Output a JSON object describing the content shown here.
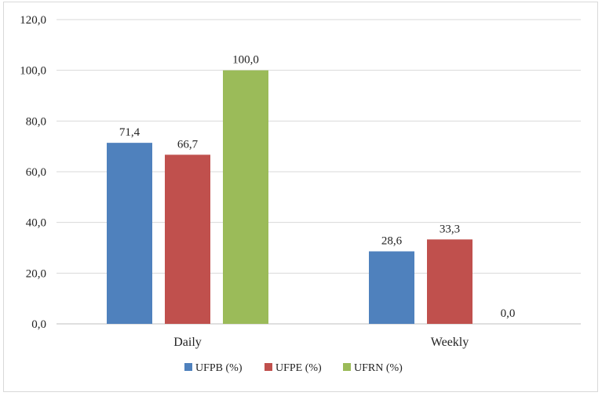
{
  "chart_data": {
    "type": "bar",
    "categories": [
      "Daily",
      "Weekly"
    ],
    "series": [
      {
        "name": "UFPB (%)",
        "color": "#4f81bd",
        "values": [
          71.4,
          28.6
        ],
        "labels": [
          "71,4",
          "28,6"
        ]
      },
      {
        "name": "UFPE (%)",
        "color": "#c0504d",
        "values": [
          66.7,
          33.3
        ],
        "labels": [
          "66,7",
          "33,3"
        ]
      },
      {
        "name": "UFRN (%)",
        "color": "#9bbb59",
        "values": [
          100.0,
          0.0
        ],
        "labels": [
          "100,0",
          "0,0"
        ]
      }
    ],
    "ylim": [
      0,
      120
    ],
    "yticks": [
      0,
      20,
      40,
      60,
      80,
      100,
      120
    ],
    "ytick_labels": [
      "0,0",
      "20,0",
      "40,0",
      "60,0",
      "80,0",
      "100,0",
      "120,0"
    ],
    "grid": true,
    "legend_position": "bottom",
    "title": "",
    "xlabel": "",
    "ylabel": ""
  }
}
